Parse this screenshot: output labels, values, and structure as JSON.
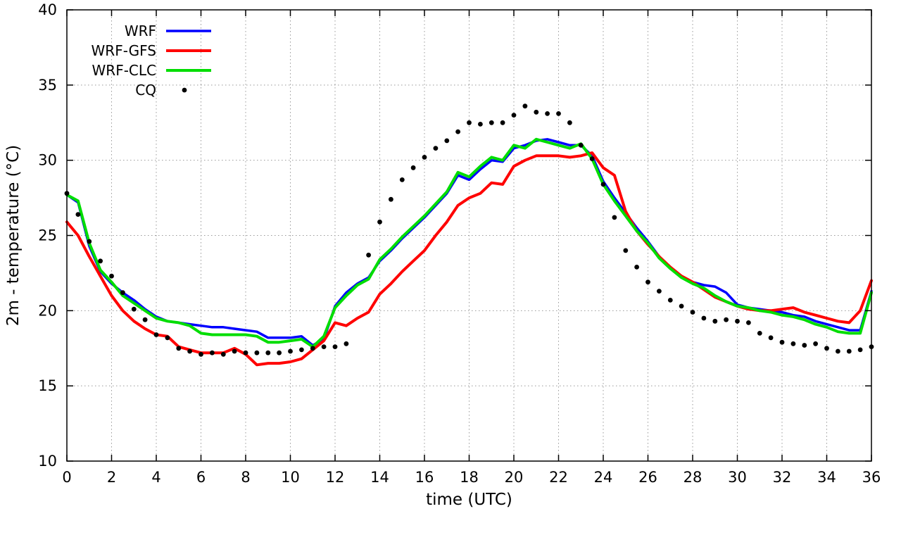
{
  "chart_data": {
    "type": "line",
    "title": "",
    "xlabel": "time (UTC)",
    "ylabel": "2m - temperature (°C)",
    "xlim": [
      0,
      36
    ],
    "ylim": [
      10,
      40
    ],
    "xticks": [
      0,
      2,
      4,
      6,
      8,
      10,
      12,
      14,
      16,
      18,
      20,
      22,
      24,
      26,
      28,
      30,
      32,
      34,
      36
    ],
    "yticks": [
      10,
      15,
      20,
      25,
      30,
      35,
      40
    ],
    "grid": "dotted",
    "grid_color": "#999999",
    "legend_position": "top-left-inside",
    "x": [
      0,
      0.5,
      1,
      1.5,
      2,
      2.5,
      3,
      3.5,
      4,
      4.5,
      5,
      5.5,
      6,
      6.5,
      7,
      7.5,
      8,
      8.5,
      9,
      9.5,
      10,
      10.5,
      11,
      11.5,
      12,
      12.5,
      13,
      13.5,
      14,
      14.5,
      15,
      15.5,
      16,
      16.5,
      17,
      17.5,
      18,
      18.5,
      19,
      19.5,
      20,
      20.5,
      21,
      21.5,
      22,
      22.5,
      23,
      23.5,
      24,
      24.5,
      25,
      25.5,
      26,
      26.5,
      27,
      27.5,
      28,
      28.5,
      29,
      29.5,
      30,
      30.5,
      31,
      31.5,
      32,
      32.5,
      33,
      33.5,
      34,
      34.5,
      35,
      35.5,
      36
    ],
    "series": [
      {
        "name": "WRF",
        "type": "line",
        "color": "#0000ff",
        "width": 3.5,
        "values": [
          27.7,
          27.2,
          24.3,
          22.6,
          21.8,
          21.2,
          20.7,
          20.1,
          19.6,
          19.3,
          19.2,
          19.1,
          19.0,
          18.9,
          18.9,
          18.8,
          18.7,
          18.6,
          18.2,
          18.2,
          18.2,
          18.3,
          17.7,
          18.1,
          20.3,
          21.2,
          21.8,
          22.2,
          23.3,
          24.0,
          24.8,
          25.5,
          26.2,
          27.0,
          27.8,
          29.0,
          28.7,
          29.4,
          30.0,
          29.9,
          30.8,
          31.0,
          31.3,
          31.4,
          31.2,
          31.0,
          31.0,
          30.3,
          28.6,
          27.5,
          26.5,
          25.5,
          24.6,
          23.6,
          22.9,
          22.3,
          21.9,
          21.7,
          21.6,
          21.2,
          20.4,
          20.2,
          20.1,
          20.0,
          19.9,
          19.7,
          19.6,
          19.3,
          19.1,
          18.9,
          18.7,
          18.7,
          21.3
        ]
      },
      {
        "name": "WRF-GFS",
        "type": "line",
        "color": "#ff0000",
        "width": 4,
        "values": [
          25.9,
          25.0,
          23.6,
          22.3,
          21.0,
          20.0,
          19.3,
          18.8,
          18.4,
          18.3,
          17.6,
          17.4,
          17.2,
          17.2,
          17.2,
          17.5,
          17.1,
          16.4,
          16.5,
          16.5,
          16.6,
          16.8,
          17.4,
          18.0,
          19.2,
          19.0,
          19.5,
          19.9,
          21.1,
          21.8,
          22.6,
          23.3,
          24.0,
          25.0,
          25.9,
          27.0,
          27.5,
          27.8,
          28.5,
          28.4,
          29.6,
          30.0,
          30.3,
          30.3,
          30.3,
          30.2,
          30.3,
          30.5,
          29.5,
          29.0,
          26.6,
          25.3,
          24.4,
          23.6,
          22.9,
          22.3,
          21.9,
          21.4,
          20.9,
          20.6,
          20.3,
          20.1,
          20.0,
          20.0,
          20.1,
          20.2,
          19.9,
          19.7,
          19.5,
          19.3,
          19.2,
          20.0,
          22.0
        ]
      },
      {
        "name": "WRF-CLC",
        "type": "line",
        "color": "#00dd00",
        "width": 4,
        "values": [
          27.7,
          27.3,
          24.5,
          22.7,
          21.9,
          21.0,
          20.5,
          20.0,
          19.5,
          19.3,
          19.2,
          19.0,
          18.5,
          18.4,
          18.4,
          18.4,
          18.4,
          18.3,
          17.9,
          17.9,
          18.0,
          18.1,
          17.6,
          18.3,
          20.2,
          21.0,
          21.7,
          22.1,
          23.4,
          24.1,
          24.9,
          25.6,
          26.3,
          27.1,
          27.9,
          29.2,
          28.9,
          29.6,
          30.2,
          30.0,
          31.0,
          30.8,
          31.4,
          31.2,
          31.0,
          30.8,
          31.1,
          30.1,
          28.4,
          27.3,
          26.3,
          25.3,
          24.5,
          23.5,
          22.8,
          22.2,
          21.8,
          21.5,
          21.0,
          20.6,
          20.3,
          20.2,
          20.0,
          19.9,
          19.7,
          19.6,
          19.4,
          19.1,
          18.9,
          18.6,
          18.5,
          18.5,
          21.2
        ]
      },
      {
        "name": "CQ",
        "type": "points",
        "color": "#000000",
        "size": 3.4,
        "values": [
          27.8,
          26.4,
          24.6,
          23.3,
          22.3,
          21.2,
          20.1,
          19.4,
          18.4,
          18.2,
          17.5,
          17.3,
          17.1,
          17.2,
          17.1,
          17.3,
          17.2,
          17.2,
          17.2,
          17.2,
          17.3,
          17.4,
          17.5,
          17.6,
          17.6,
          17.8,
          null,
          23.7,
          25.9,
          27.4,
          28.7,
          29.5,
          30.2,
          30.8,
          31.3,
          31.9,
          32.5,
          32.4,
          32.5,
          32.5,
          33.0,
          33.6,
          33.2,
          33.1,
          33.1,
          32.5,
          31.0,
          30.1,
          28.4,
          26.2,
          24.0,
          22.9,
          21.9,
          21.3,
          20.7,
          20.3,
          19.9,
          19.5,
          19.3,
          19.4,
          19.3,
          19.2,
          18.5,
          18.2,
          17.9,
          17.8,
          17.7,
          17.8,
          17.5,
          17.3,
          17.3,
          17.4,
          17.6
        ]
      }
    ]
  }
}
